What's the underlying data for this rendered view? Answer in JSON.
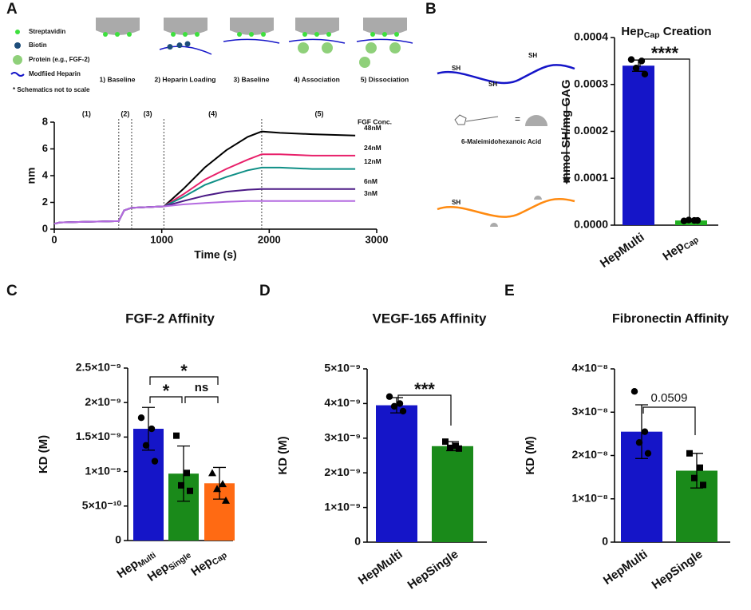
{
  "panel_labels": [
    "A",
    "B",
    "C",
    "D",
    "E"
  ],
  "schematic_a": {
    "legend": [
      "Streptavidin",
      "Biotin",
      "Protein (e.g., FGF-2)",
      "Modfiied Heparin"
    ],
    "note": "* Schematics not to scale",
    "steps": [
      "1) Baseline",
      "2) Heparin Loading",
      "3) Baseline",
      "4) Association",
      "5) Dissociation"
    ]
  },
  "schematic_b": {
    "groups": [
      "SH",
      "SH",
      "SH",
      "SH"
    ],
    "equals": "=",
    "reagent": "6-Maleimidohexanoic Acid"
  },
  "chart_data": [
    {
      "type": "line",
      "xlabel": "Time (s)",
      "ylabel": "nm",
      "xlim": [
        0,
        3000
      ],
      "xticks": [
        0,
        1000,
        2000,
        3000
      ],
      "ylim": [
        0,
        8
      ],
      "yticks": [
        0,
        2,
        4,
        6,
        8
      ],
      "phases": [
        "(1)",
        "(2)",
        "(3)",
        "(4)",
        "(5)"
      ],
      "phase_boundaries": [
        600,
        720,
        1020,
        1930
      ],
      "legend_title": "FGF Conc.",
      "x": [
        0,
        50,
        300,
        600,
        650,
        720,
        1020,
        1200,
        1400,
        1600,
        1800,
        1930,
        2100,
        2400,
        2800
      ],
      "series": [
        {
          "name": "48nM",
          "color": "#000000",
          "values": [
            0.4,
            0.5,
            0.55,
            0.6,
            1.4,
            1.6,
            1.7,
            3.0,
            4.6,
            5.9,
            6.9,
            7.3,
            7.2,
            7.1,
            7.0
          ]
        },
        {
          "name": "24nM",
          "color": "#e8206a",
          "values": [
            0.4,
            0.5,
            0.55,
            0.6,
            1.4,
            1.6,
            1.7,
            2.6,
            3.7,
            4.5,
            5.2,
            5.6,
            5.6,
            5.5,
            5.5
          ]
        },
        {
          "name": "12nM",
          "color": "#0f8f86",
          "values": [
            0.4,
            0.5,
            0.55,
            0.6,
            1.4,
            1.6,
            1.7,
            2.4,
            3.3,
            3.9,
            4.4,
            4.6,
            4.6,
            4.5,
            4.5
          ]
        },
        {
          "name": "6nM",
          "color": "#4b1a86",
          "values": [
            0.4,
            0.5,
            0.55,
            0.6,
            1.4,
            1.6,
            1.7,
            2.1,
            2.5,
            2.8,
            2.95,
            3.0,
            3.0,
            3.0,
            3.0
          ]
        },
        {
          "name": "3nM",
          "color": "#b46ae0",
          "values": [
            0.4,
            0.5,
            0.55,
            0.6,
            1.4,
            1.6,
            1.7,
            1.85,
            1.95,
            2.05,
            2.1,
            2.1,
            2.1,
            2.1,
            2.1
          ]
        }
      ]
    },
    {
      "type": "bar",
      "title": {
        "base": "Hep",
        "sub": "Cap",
        "after": " Creation"
      },
      "ylabel": "mmol SH/mg GAG",
      "categories": [
        "HepMulti",
        {
          "base": "Hep",
          "sub": "Cap"
        }
      ],
      "values": [
        0.00034,
        1e-05
      ],
      "errors": [
        1.2e-05,
        2e-06
      ],
      "colors": [
        "#1515c8",
        "#22b022"
      ],
      "markers": [
        "circle",
        "circle"
      ],
      "points": [
        [
          0.000353,
          0.00035,
          0.000335,
          0.000322
        ],
        [
          9e-06,
          1e-05,
          1.1e-05,
          1e-05
        ]
      ],
      "ylim": [
        0,
        0.0004
      ],
      "yticks": [
        {
          "value": 0,
          "label": "0.0000"
        },
        {
          "value": 0.0001,
          "label": "0.0001"
        },
        {
          "value": 0.0002,
          "label": "0.0002"
        },
        {
          "value": 0.0003,
          "label": "0.0003"
        },
        {
          "value": 0.0004,
          "label": "0.0004"
        }
      ],
      "brackets": [
        "****"
      ]
    },
    {
      "type": "bar",
      "title": "FGF-2 Affinity",
      "ylabel": "KD (M)",
      "categories": [
        {
          "base": "Hep",
          "sub": "Multi"
        },
        {
          "base": "Hep",
          "sub": "Single"
        },
        {
          "base": "Hep",
          "sub": "Cap"
        }
      ],
      "values": [
        1.62e-09,
        9.7e-10,
        8.3e-10
      ],
      "errors": [
        3.1e-10,
        4e-10,
        2.3e-10
      ],
      "colors": [
        "#1515c8",
        "#1a8a1a",
        "#ff6a13"
      ],
      "markers": [
        "circle",
        "square",
        "triangle"
      ],
      "points": [
        [
          1.78e-09,
          1.62e-09,
          1.38e-09,
          1.15e-09
        ],
        [
          1.52e-09,
          9.8e-10,
          8e-10,
          7.2e-10
        ],
        [
          9.8e-10,
          8.2e-10,
          7.5e-10,
          5.8e-10
        ]
      ],
      "ylim": [
        0,
        2.5e-09
      ],
      "yticks": [
        0,
        {
          "value": 5e-10,
          "label": "5×10⁻¹⁰"
        },
        {
          "value": 1e-09,
          "label": "1×10⁻⁹"
        },
        {
          "value": 1.5e-09,
          "label": "1.5×10⁻⁹"
        },
        {
          "value": 2e-09,
          "label": "2×10⁻⁹"
        },
        {
          "value": 2.5e-09,
          "label": "2.5×10⁻⁹"
        }
      ],
      "brackets": [
        "*",
        "*",
        "ns"
      ]
    },
    {
      "type": "bar",
      "title": "VEGF-165 Affinity",
      "ylabel": "KD (M)",
      "categories": [
        "HepMulti",
        "HepSingle"
      ],
      "values": [
        3.95e-09,
        2.77e-09
      ],
      "errors": [
        2.2e-10,
        1.3e-10
      ],
      "colors": [
        "#1515c8",
        "#1a8a1a"
      ],
      "markers": [
        "circle",
        "square"
      ],
      "points": [
        [
          4.2e-09,
          4e-09,
          3.92e-09,
          3.78e-09
        ],
        [
          2.9e-09,
          2.78e-09,
          2.72e-09,
          2.7e-09
        ]
      ],
      "ylim": [
        0,
        5e-09
      ],
      "yticks": [
        0,
        {
          "value": 1e-09,
          "label": "1×10⁻⁹"
        },
        {
          "value": 2e-09,
          "label": "2×10⁻⁹"
        },
        {
          "value": 3e-09,
          "label": "3×10⁻⁹"
        },
        {
          "value": 4e-09,
          "label": "4×10⁻⁹"
        },
        {
          "value": 5e-09,
          "label": "5×10⁻⁹"
        }
      ],
      "brackets": [
        "***"
      ]
    },
    {
      "type": "bar",
      "title": "Fibronectin Affinity",
      "ylabel": "KD (M)",
      "categories": [
        "HepMulti",
        "HepSingle"
      ],
      "values": [
        2.55e-08,
        1.65e-08
      ],
      "errors": [
        6.2e-09,
        4e-09
      ],
      "colors": [
        "#1515c8",
        "#1a8a1a"
      ],
      "markers": [
        "circle",
        "square"
      ],
      "points": [
        [
          3.48e-08,
          2.55e-08,
          2.3e-08,
          2.05e-08
        ],
        [
          2.05e-08,
          1.72e-08,
          1.48e-08,
          1.32e-08
        ]
      ],
      "ylim": [
        0,
        4e-08
      ],
      "yticks": [
        0,
        {
          "value": 1e-08,
          "label": "1×10⁻⁸"
        },
        {
          "value": 2e-08,
          "label": "2×10⁻⁸"
        },
        {
          "value": 3e-08,
          "label": "3×10⁻⁸"
        },
        {
          "value": 4e-08,
          "label": "4×10⁻⁸"
        }
      ],
      "brackets": [
        "0.0509"
      ]
    }
  ]
}
